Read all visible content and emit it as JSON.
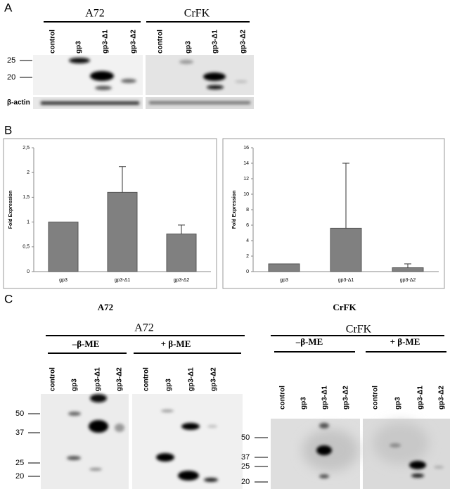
{
  "panels": {
    "a": "A",
    "b": "B",
    "c": "C"
  },
  "panel_a": {
    "groups": [
      {
        "title": "A72",
        "lanes": [
          "control",
          "gp3",
          "gp3-Δ1",
          "gp3-Δ2"
        ]
      },
      {
        "title": "CrFK",
        "lanes": [
          "control",
          "gp3",
          "gp3-Δ1",
          "gp3-Δ2"
        ]
      }
    ],
    "markers": [
      25,
      20
    ],
    "loading_control": "β-actin"
  },
  "chart_data": [
    {
      "type": "bar",
      "y_label": "Fold Expression",
      "categories": [
        "gp3",
        "gp3-Δ1",
        "gp3-Δ2"
      ],
      "values": [
        1,
        1.6,
        0.76
      ],
      "errors": [
        0,
        0.52,
        0.18
      ],
      "color": "#808080",
      "ylim": [
        0,
        2.5
      ],
      "yticks": [
        0,
        {
          "value": 0.5,
          "label": "0,5"
        },
        1,
        {
          "value": 1.5,
          "label": "1,5"
        },
        2,
        {
          "value": 2.5,
          "label": "2,5"
        }
      ]
    },
    {
      "type": "bar",
      "y_label": "Fold Expression",
      "categories": [
        "gp3",
        "gp3-Δ1",
        "gp3-Δ2"
      ],
      "values": [
        1,
        5.6,
        0.5
      ],
      "errors": [
        0,
        8.4,
        0.5
      ],
      "color": "#808080",
      "ylim": [
        0,
        16
      ],
      "yticks": [
        0,
        2,
        4,
        6,
        8,
        10,
        12,
        14,
        16
      ]
    }
  ],
  "panel_c": {
    "titles": [
      "A72",
      "CrFK"
    ],
    "blots": [
      {
        "title": "A72",
        "conditions": [
          {
            "label": "–β-ME",
            "lanes": [
              "control",
              "gp3",
              "gp3-Δ1",
              "gp3-Δ2"
            ]
          },
          {
            "label": "+ β-ME",
            "lanes": [
              "control",
              "gp3",
              "gp3-Δ1",
              "gp3-Δ2"
            ]
          }
        ],
        "markers": [
          50,
          37,
          25,
          20
        ]
      },
      {
        "title": "CrFK",
        "conditions": [
          {
            "label": "–β-ME",
            "lanes": [
              "control",
              "gp3",
              "gp3-Δ1",
              "gp3-Δ2"
            ]
          },
          {
            "label": "+ β-ME",
            "lanes": [
              "control",
              "gp3",
              "gp3-Δ1",
              "gp3-Δ2"
            ]
          }
        ],
        "markers": [
          50,
          37,
          25,
          20
        ]
      }
    ]
  }
}
